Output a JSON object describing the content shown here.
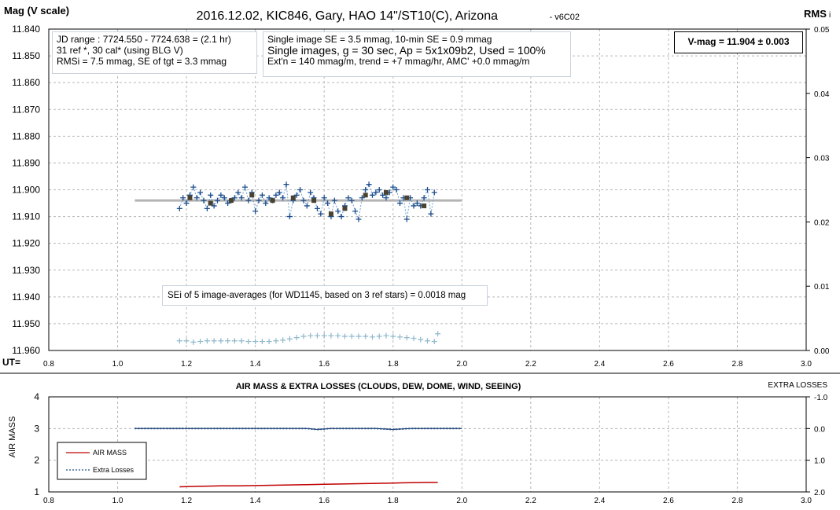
{
  "top": {
    "title": "2016.12.02, KIC846, Gary, HAO 14\"/ST10(C), Arizona",
    "version": "- v6C02",
    "ylabel": "Mag (V scale)",
    "y2label": "RMS",
    "y2label_sub": "i",
    "xlabel": "UT=",
    "info_left": [
      "JD range  : 7724.550 - 7724.638 = (2.1 hr)",
      "31 ref *, 30 cal* (using BLG V)",
      "RMSi = 7.5 mmag, SE of tgt = 3.3 mmag"
    ],
    "info_mid": [
      "Single image SE = 3.5 mmag, 10-min SE = 0.9 mmag",
      "Single images, g = 30 sec, Ap = 5x1x09b2, Used = 100%",
      "Ext'n = 140 mmag/m, trend = +7 mmag/hr, AMC' +0.0 mmag/m"
    ],
    "vmag_label": "V-mag  = 11.904 ± 0.003",
    "sei_label": "SEi of 5 image-averages (for WD1145, based on 3 ref stars) = 0.0018 mag",
    "x_ticks": [
      "0.8",
      "1.0",
      "1.2",
      "1.4",
      "1.6",
      "1.8",
      "2.0",
      "2.2",
      "2.4",
      "2.6",
      "2.8",
      "3.0"
    ],
    "y_ticks": [
      "11.840",
      "11.850",
      "11.860",
      "11.870",
      "11.880",
      "11.890",
      "11.900",
      "11.910",
      "11.920",
      "11.930",
      "11.940",
      "11.950",
      "11.960"
    ],
    "y2_ticks": [
      "0.05",
      "0.04",
      "0.03",
      "0.02",
      "0.01",
      "0.00"
    ]
  },
  "bottom": {
    "title": "AIR MASS & EXTRA LOSSES (CLOUDS, DEW, DOME, WIND, SEEING)",
    "ylabel": "AIR MASS",
    "y2label": "EXTRA LOSSES",
    "x_ticks": [
      "0.8",
      "1.0",
      "1.2",
      "1.4",
      "1.6",
      "1.8",
      "2.0",
      "2.2",
      "2.4",
      "2.6",
      "2.8",
      "3.0"
    ],
    "y_ticks": [
      "4",
      "3",
      "2",
      "1"
    ],
    "y2_ticks": [
      "-1.0",
      "0.0",
      "1.0",
      "2.0"
    ],
    "legend": [
      "AIR MASS",
      "Extra Losses"
    ]
  },
  "colors": {
    "single": "#1f4e8c",
    "dotted": "#6a9fd4",
    "avg": "#4a4230",
    "rms": "#8fb8cc",
    "fit": "#b4b4b4",
    "airmass": "#c00000",
    "grid": "#b8b8b8"
  },
  "chart_data": [
    {
      "type": "scatter",
      "title": "2016.12.02, KIC846, Gary, HAO 14\"/ST10(C), Arizona",
      "xlabel": "UT=",
      "ylabel": "Mag (V scale)",
      "xlim": [
        0.8,
        3.0
      ],
      "ylim": [
        11.96,
        11.84
      ],
      "y2lim": [
        0.0,
        0.05
      ],
      "series": [
        {
          "marker": "plus",
          "x": [
            1.18,
            1.19,
            1.2,
            1.21,
            1.22,
            1.23,
            1.24,
            1.25,
            1.26,
            1.27,
            1.28,
            1.29,
            1.3,
            1.31,
            1.32,
            1.33,
            1.34,
            1.35,
            1.36,
            1.37,
            1.38,
            1.39,
            1.4,
            1.41,
            1.42,
            1.43,
            1.44,
            1.45,
            1.46,
            1.47,
            1.48,
            1.49,
            1.5,
            1.51,
            1.52,
            1.53,
            1.54,
            1.55,
            1.56,
            1.57,
            1.58,
            1.59,
            1.6,
            1.61,
            1.62,
            1.63,
            1.64,
            1.65,
            1.66,
            1.67,
            1.68,
            1.69,
            1.7,
            1.71,
            1.72,
            1.73,
            1.74,
            1.75,
            1.76,
            1.77,
            1.78,
            1.79,
            1.8,
            1.81,
            1.82,
            1.83,
            1.84,
            1.85,
            1.86,
            1.87,
            1.88,
            1.89,
            1.9,
            1.91,
            1.92
          ],
          "values": [
            11.907,
            11.903,
            11.905,
            11.902,
            11.899,
            11.903,
            11.901,
            11.904,
            11.907,
            11.902,
            11.906,
            11.904,
            11.902,
            11.903,
            11.905,
            11.904,
            11.903,
            11.901,
            11.903,
            11.899,
            11.904,
            11.901,
            11.908,
            11.904,
            11.902,
            11.905,
            11.903,
            11.904,
            11.902,
            11.901,
            11.903,
            11.898,
            11.91,
            11.904,
            11.902,
            11.9,
            11.904,
            11.906,
            11.901,
            11.903,
            11.907,
            11.909,
            11.903,
            11.905,
            11.91,
            11.904,
            11.908,
            11.91,
            11.906,
            11.903,
            11.904,
            11.908,
            11.911,
            11.903,
            11.9,
            11.898,
            11.902,
            11.901,
            11.9,
            11.902,
            11.903,
            11.901,
            11.899,
            11.9,
            11.905,
            11.903,
            11.911,
            11.903,
            11.906,
            11.905,
            11.906,
            11.903,
            11.9,
            11.909,
            11.901
          ]
        },
        {
          "marker": "square",
          "x": [
            1.21,
            1.27,
            1.33,
            1.39,
            1.45,
            1.51,
            1.57,
            1.62,
            1.66,
            1.72,
            1.78,
            1.84,
            1.89
          ],
          "values": [
            11.903,
            11.905,
            11.904,
            11.902,
            11.904,
            11.903,
            11.904,
            11.909,
            11.907,
            11.902,
            11.901,
            11.903,
            11.906
          ]
        },
        {
          "marker": "line",
          "x": [
            1.05,
            2.0
          ],
          "values": [
            11.904,
            11.904
          ]
        },
        {
          "axis": "y2",
          "marker": "plus",
          "x": [
            1.18,
            1.2,
            1.22,
            1.24,
            1.26,
            1.28,
            1.3,
            1.32,
            1.34,
            1.36,
            1.38,
            1.4,
            1.42,
            1.44,
            1.46,
            1.48,
            1.5,
            1.52,
            1.54,
            1.56,
            1.58,
            1.6,
            1.62,
            1.64,
            1.66,
            1.68,
            1.7,
            1.72,
            1.74,
            1.76,
            1.78,
            1.8,
            1.82,
            1.84,
            1.86,
            1.88,
            1.9,
            1.92,
            1.93
          ],
          "values": [
            0.0015,
            0.0015,
            0.0013,
            0.0014,
            0.0015,
            0.0015,
            0.0015,
            0.0015,
            0.0015,
            0.0015,
            0.0014,
            0.0014,
            0.0014,
            0.0014,
            0.0015,
            0.0016,
            0.0018,
            0.002,
            0.0022,
            0.0023,
            0.0023,
            0.0023,
            0.0023,
            0.0023,
            0.0022,
            0.0022,
            0.0022,
            0.0022,
            0.0021,
            0.0022,
            0.0023,
            0.0022,
            0.0021,
            0.002,
            0.0019,
            0.0017,
            0.0015,
            0.0014,
            0.0026
          ]
        }
      ]
    },
    {
      "type": "line",
      "title": "AIR MASS & EXTRA LOSSES (CLOUDS, DEW, DOME, WIND, SEEING)",
      "ylabel": "AIR MASS",
      "xlim": [
        0.8,
        3.0
      ],
      "ylim": [
        1,
        4
      ],
      "y2lim": [
        2.0,
        -1.0
      ],
      "series": [
        {
          "name": "AIR MASS",
          "x": [
            1.18,
            1.25,
            1.3,
            1.35,
            1.4,
            1.45,
            1.5,
            1.55,
            1.6,
            1.65,
            1.7,
            1.75,
            1.8,
            1.85,
            1.9,
            1.93
          ],
          "values": [
            1.16,
            1.18,
            1.19,
            1.19,
            1.2,
            1.21,
            1.22,
            1.23,
            1.24,
            1.25,
            1.26,
            1.27,
            1.28,
            1.29,
            1.3,
            1.3
          ]
        },
        {
          "name": "Extra Losses",
          "axis": "y2",
          "x": [
            1.05,
            1.2,
            1.4,
            1.55,
            1.58,
            1.62,
            1.75,
            1.8,
            1.85,
            2.0
          ],
          "values": [
            0.0,
            0.0,
            0.0,
            0.0,
            0.03,
            0.0,
            0.0,
            0.03,
            0.0,
            0.0
          ]
        }
      ]
    }
  ]
}
